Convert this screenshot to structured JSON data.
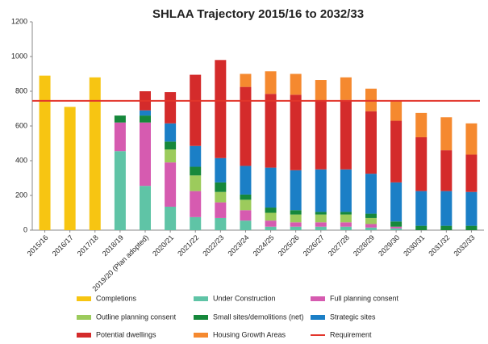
{
  "chart_data": {
    "type": "stacked-bar",
    "title": "SHLAA Trajectory 2015/16 to 2032/33",
    "categories": [
      "2015/16",
      "2016/17",
      "2017/18",
      "2018/19",
      "2019/20 (Plan adopted)",
      "2020/21",
      "2021/22",
      "2022/23",
      "2023/24",
      "2024/25",
      "2025/26",
      "2026/27",
      "2027/28",
      "2028/29",
      "2029/30",
      "2030/31",
      "2031/32",
      "2032/33"
    ],
    "series": [
      {
        "name": "Completions",
        "color": "#f7c512",
        "values": [
          890,
          710,
          880,
          0,
          0,
          0,
          0,
          0,
          0,
          0,
          0,
          0,
          0,
          0,
          0,
          0,
          0,
          0
        ]
      },
      {
        "name": "Under Construction",
        "color": "#5fc4a6",
        "values": [
          0,
          0,
          0,
          455,
          255,
          135,
          75,
          70,
          55,
          20,
          20,
          20,
          20,
          15,
          10,
          0,
          0,
          0
        ]
      },
      {
        "name": "Full planning consent",
        "color": "#d65bb0",
        "values": [
          0,
          0,
          0,
          165,
          365,
          255,
          150,
          90,
          60,
          35,
          25,
          25,
          25,
          20,
          10,
          0,
          0,
          0
        ]
      },
      {
        "name": "Outline planning consent",
        "color": "#9ccb5c",
        "values": [
          0,
          0,
          0,
          0,
          0,
          75,
          90,
          60,
          60,
          45,
          45,
          45,
          45,
          35,
          0,
          0,
          0,
          0
        ]
      },
      {
        "name": "Small sites/demolitions (net)",
        "color": "#16883b",
        "values": [
          0,
          0,
          0,
          40,
          40,
          45,
          50,
          55,
          30,
          30,
          25,
          15,
          15,
          25,
          30,
          25,
          25,
          25
        ]
      },
      {
        "name": "Strategic sites",
        "color": "#1b7fc6",
        "values": [
          0,
          0,
          0,
          0,
          30,
          105,
          120,
          140,
          165,
          230,
          230,
          245,
          245,
          230,
          225,
          200,
          200,
          195
        ]
      },
      {
        "name": "Potential dwellings",
        "color": "#d42b2b",
        "values": [
          0,
          0,
          0,
          0,
          110,
          180,
          410,
          565,
          455,
          425,
          435,
          395,
          400,
          360,
          355,
          310,
          235,
          215
        ]
      },
      {
        "name": "Housing Growth Areas",
        "color": "#f5892f",
        "values": [
          0,
          0,
          0,
          0,
          0,
          0,
          0,
          0,
          75,
          130,
          120,
          120,
          130,
          130,
          115,
          140,
          190,
          180
        ]
      }
    ],
    "requirement": {
      "name": "Requirement",
      "value": 745,
      "color": "#e2352b"
    },
    "ylim": [
      0,
      1200
    ],
    "yticks": [
      0,
      200,
      400,
      600,
      800,
      1000,
      1200
    ],
    "grid": false
  }
}
